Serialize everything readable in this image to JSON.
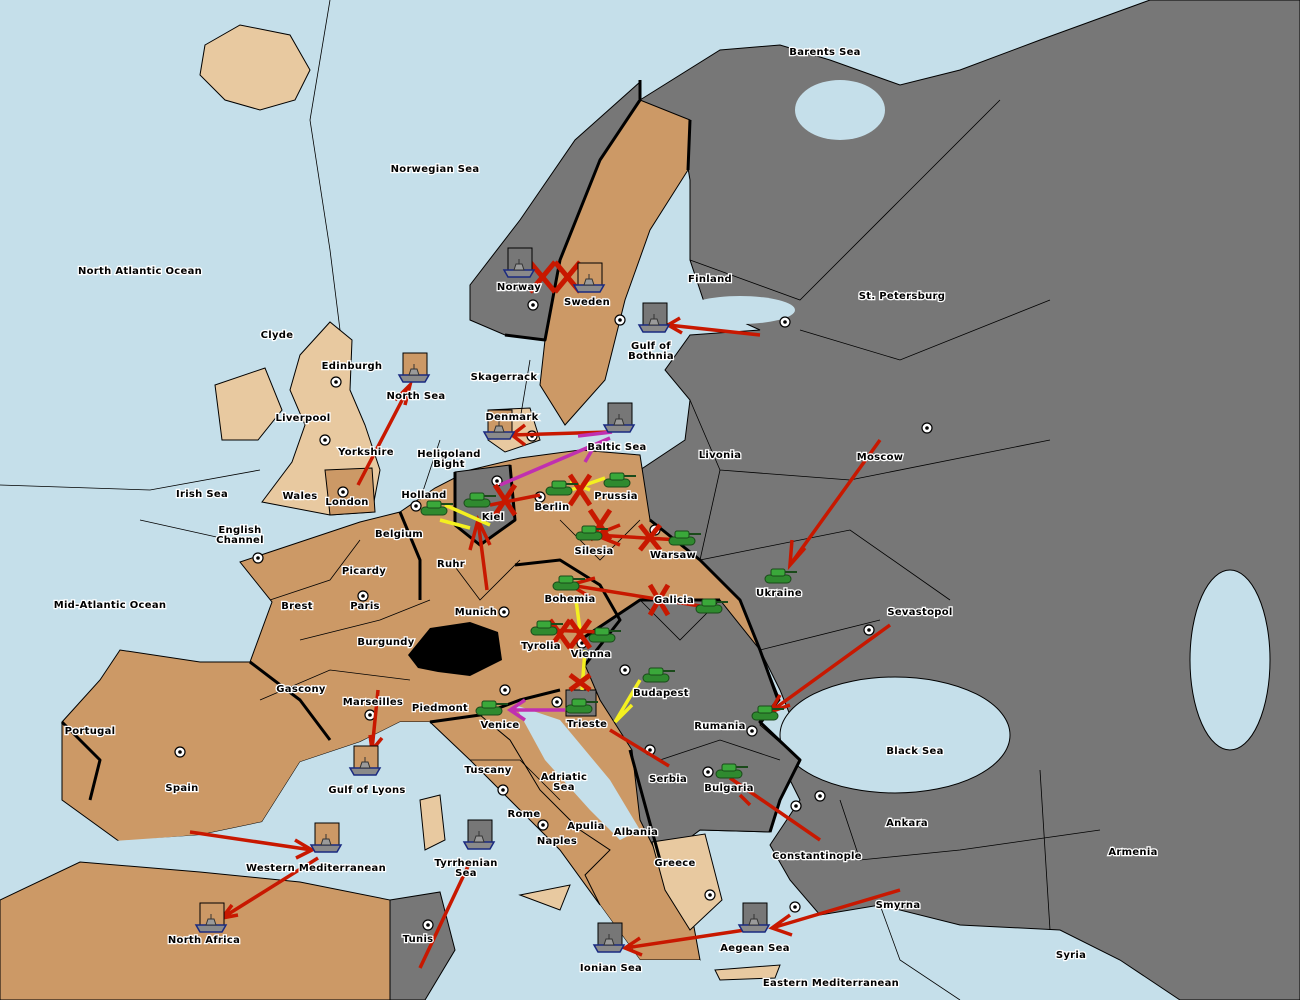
{
  "map": {
    "colors": {
      "sea": "#c5dfea",
      "power_brown": "#cc9966",
      "power_grey": "#777777",
      "neutral": "#e8c9a0",
      "neutral_dark": "#000000",
      "order_move": "#c81800",
      "order_support": "#f4f020",
      "order_convoy": "#c030b0",
      "army": "#3aa83a"
    },
    "labels": [
      "Barents Sea",
      "Norwegian Sea",
      "North Atlantic Ocean",
      "St. Petersburg",
      "Finland",
      "Norway",
      "Sweden",
      "Gulf of",
      "Bothnia",
      "Clyde",
      "Edinburgh",
      "North Sea",
      "Skagerrack",
      "Liverpool",
      "Denmark",
      "Baltic Sea",
      "Livonia",
      "Moscow",
      "Yorkshire",
      "Heligoland",
      "Bight",
      "Irish Sea",
      "Wales",
      "London",
      "Holland",
      "Kiel",
      "Berlin",
      "Prussia",
      "English",
      "Channel",
      "Belgium",
      "Silesia",
      "Warsaw",
      "Ruhr",
      "Picardy",
      "Ukraine",
      "Mid-Atlantic Ocean",
      "Brest",
      "Paris",
      "Bohemia",
      "Galicia",
      "Munich",
      "Sevastopol",
      "Burgundy",
      "Tyrolia",
      "Vienna",
      "Budapest",
      "Gascony",
      "Marseilles",
      "Piedmont",
      "Venice",
      "Trieste",
      "Rumania",
      "Portugal",
      "Black Sea",
      "Tuscany",
      "Adriatic",
      "Sea",
      "Serbia",
      "Bulgaria",
      "Spain",
      "Gulf of Lyons",
      "Rome",
      "Apulia",
      "Ankara",
      "Albania",
      "Naples",
      "Armenia",
      "Constantinople",
      "Greece",
      "Western Mediterranean",
      "Tyrrhenian",
      "Sea",
      "Smyrna",
      "Tunis",
      "North Africa",
      "Aegean Sea",
      "Syria",
      "Ionian Sea",
      "Eastern Mediterranean"
    ],
    "units": [
      {
        "type": "fleet",
        "province": "Norway",
        "power": "grey"
      },
      {
        "type": "fleet",
        "province": "Sweden",
        "power": "brown"
      },
      {
        "type": "fleet",
        "province": "Gulf of Bothnia",
        "power": "grey"
      },
      {
        "type": "fleet",
        "province": "North Sea",
        "power": "brown"
      },
      {
        "type": "fleet",
        "province": "Denmark",
        "power": "brown"
      },
      {
        "type": "fleet",
        "province": "Baltic Sea",
        "power": "grey"
      },
      {
        "type": "fleet",
        "province": "Gulf of Lyons",
        "power": "brown"
      },
      {
        "type": "fleet",
        "province": "Western Mediterranean",
        "power": "brown"
      },
      {
        "type": "fleet",
        "province": "Tyrrhenian Sea",
        "power": "grey"
      },
      {
        "type": "fleet",
        "province": "North Africa",
        "power": "brown"
      },
      {
        "type": "fleet",
        "province": "Aegean Sea",
        "power": "grey"
      },
      {
        "type": "fleet",
        "province": "Ionian Sea",
        "power": "grey"
      },
      {
        "type": "army",
        "province": "Holland",
        "power": "brown"
      },
      {
        "type": "army",
        "province": "Kiel",
        "power": "brown"
      },
      {
        "type": "army",
        "province": "Berlin",
        "power": "brown"
      },
      {
        "type": "army",
        "province": "Prussia",
        "power": "brown"
      },
      {
        "type": "army",
        "province": "Silesia",
        "power": "brown"
      },
      {
        "type": "army",
        "province": "Warsaw",
        "power": "grey"
      },
      {
        "type": "army",
        "province": "Ukraine",
        "power": "grey"
      },
      {
        "type": "army",
        "province": "Bohemia",
        "power": "brown"
      },
      {
        "type": "army",
        "province": "Galicia",
        "power": "grey"
      },
      {
        "type": "army",
        "province": "Tyrolia",
        "power": "brown"
      },
      {
        "type": "army",
        "province": "Vienna",
        "power": "grey"
      },
      {
        "type": "army",
        "province": "Budapest",
        "power": "grey"
      },
      {
        "type": "army",
        "province": "Venice",
        "power": "brown"
      },
      {
        "type": "army",
        "province": "Trieste",
        "power": "grey"
      },
      {
        "type": "army",
        "province": "Rumania",
        "power": "grey"
      },
      {
        "type": "army",
        "province": "Bulgaria",
        "power": "grey"
      }
    ]
  }
}
